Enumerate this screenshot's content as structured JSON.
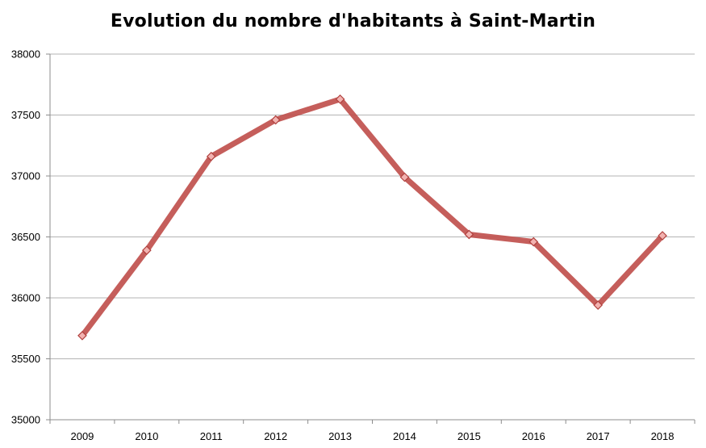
{
  "chart_data": {
    "type": "line",
    "title": "Evolution du nombre d'habitants à Saint-Martin",
    "xlabel": "",
    "ylabel": "",
    "categories": [
      "2009",
      "2010",
      "2011",
      "2012",
      "2013",
      "2014",
      "2015",
      "2016",
      "2017",
      "2018"
    ],
    "series": [
      {
        "values": [
          35690,
          36390,
          37160,
          37460,
          37630,
          36990,
          36520,
          36460,
          35940,
          36510
        ],
        "color": "#c0504d"
      }
    ],
    "ylim": [
      35000,
      38000
    ],
    "yticks": [
      35000,
      35500,
      36000,
      36500,
      37000,
      37500,
      38000
    ],
    "grid": true,
    "legend": "none"
  }
}
